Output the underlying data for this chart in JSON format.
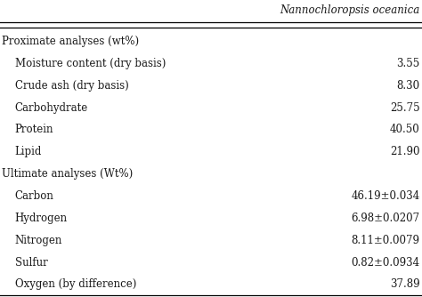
{
  "header_col": "Nannochloropsis oceanica",
  "rows": [
    {
      "label": "Proximate analyses (wt%)",
      "value": "",
      "section": true
    },
    {
      "label": "Moisture content (dry basis)",
      "value": "3.55",
      "section": false
    },
    {
      "label": "Crude ash (dry basis)",
      "value": "8.30",
      "section": false
    },
    {
      "label": "Carbohydrate",
      "value": "25.75",
      "section": false
    },
    {
      "label": "Protein",
      "value": "40.50",
      "section": false
    },
    {
      "label": "Lipid",
      "value": "21.90",
      "section": false
    },
    {
      "label": "Ultimate analyses (Wt%)",
      "value": "",
      "section": true
    },
    {
      "label": "Carbon",
      "value": "46.19±0.034",
      "section": false
    },
    {
      "label": "Hydrogen",
      "value": "6.98±0.0207",
      "section": false
    },
    {
      "label": "Nitrogen",
      "value": "8.11±0.0079",
      "section": false
    },
    {
      "label": "Sulfur",
      "value": "0.82±0.0934",
      "section": false
    },
    {
      "label": "Oxygen (by difference)",
      "value": "37.89",
      "section": false
    }
  ],
  "bg_color": "#ffffff",
  "text_color": "#1a1a1a",
  "font_size": 8.5,
  "header_font_size": 8.5,
  "fig_width": 4.74,
  "fig_height": 3.34,
  "dpi": 100
}
